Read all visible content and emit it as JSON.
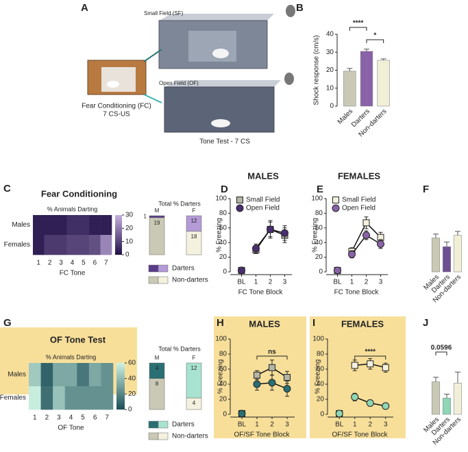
{
  "diagram": {
    "panel": "A",
    "small_field": "Small Field (SF)",
    "open_field": "Open Field (OF)",
    "fc": "Fear Conditioning (FC)",
    "fc_sub": "7 CS-US",
    "test": "Tone Test - 7 CS"
  },
  "chart_data": [
    {
      "type": "bar",
      "panel": "B",
      "ylabel": "Shock response (cm/s)",
      "categories": [
        "Males",
        "Darters",
        "Non-darters"
      ],
      "values": [
        19.5,
        30.5,
        25.5
      ],
      "errors": [
        1.5,
        1.2,
        0.8
      ],
      "colors": [
        "#c9c9b5",
        "#8a62a8",
        "#f2efd8"
      ],
      "ylim": [
        0,
        40
      ],
      "yticks": [
        0,
        10,
        20,
        30,
        40
      ],
      "annotations": [
        "****",
        "*"
      ]
    },
    {
      "type": "heatmap",
      "panel": "C",
      "title": "Fear Conditioning",
      "subtitle": "% Animals Darting",
      "rows": [
        "Males",
        "Females"
      ],
      "columns": [
        "1",
        "2",
        "3",
        "4",
        "5",
        "6",
        "7"
      ],
      "xlabel": "FC Tone",
      "values": [
        [
          3,
          3,
          3,
          6,
          6,
          3,
          3
        ],
        [
          3,
          8,
          8,
          10,
          10,
          12,
          22
        ]
      ],
      "zlim": [
        0,
        30
      ],
      "zticks": [
        0,
        10,
        20,
        30
      ],
      "cmap": [
        "#1f0f45",
        "#c6b1e0"
      ]
    },
    {
      "type": "stacked_percent",
      "title": "Total % Darters",
      "categories": [
        "M",
        "F"
      ],
      "series": [
        {
          "name": "Non-darters",
          "colors": [
            "#c9c9b5",
            "#f4f1de"
          ],
          "values": [
            19,
            18
          ]
        },
        {
          "name": "Darters",
          "colors": [
            "#5a3d8a",
            "#b49ad6"
          ],
          "values": [
            1,
            12
          ]
        }
      ]
    },
    {
      "type": "line",
      "panel": "D",
      "title": "MALES",
      "ylabel": "% Freezing",
      "xlabel": "FC Tone Block",
      "categories": [
        "BL",
        "1",
        "2",
        "3"
      ],
      "ylim": [
        0,
        100
      ],
      "yticks": [
        0,
        20,
        40,
        60,
        80,
        100
      ],
      "legend": "upper left",
      "series": [
        {
          "name": "Small Field",
          "color": "#b5b5a5",
          "marker": "square",
          "values": [
            2,
            30,
            58,
            50
          ],
          "errors": [
            1,
            5,
            12,
            10
          ]
        },
        {
          "name": "Open Field",
          "color": "#4a2e72",
          "marker": "circle",
          "values": [
            2,
            32,
            58,
            53
          ],
          "errors": [
            1,
            6,
            10,
            10
          ]
        }
      ]
    },
    {
      "type": "line",
      "panel": "E",
      "title": "FEMALES",
      "ylabel": "% Freezing",
      "xlabel": "FC Tone Block",
      "categories": [
        "BL",
        "1",
        "2",
        "3"
      ],
      "ylim": [
        0,
        100
      ],
      "yticks": [
        0,
        20,
        40,
        60,
        80,
        100
      ],
      "legend": "upper left",
      "series": [
        {
          "name": "Small Field",
          "color": "#f4f1de",
          "marker": "square",
          "values": [
            2,
            28,
            67,
            47
          ],
          "errors": [
            1,
            5,
            8,
            7
          ]
        },
        {
          "name": "Open Field",
          "color": "#8a62a8",
          "marker": "circle",
          "values": [
            2,
            24,
            50,
            38
          ],
          "errors": [
            1,
            5,
            6,
            6
          ]
        }
      ]
    },
    {
      "type": "bar",
      "panel": "F",
      "categories": [
        "Males",
        "Darters",
        "Non-darters"
      ],
      "values": [
        51,
        38,
        55
      ],
      "errors": [
        6,
        7,
        6
      ],
      "colors": [
        "#c9c9b5",
        "#6e4f93",
        "#f2efd8"
      ],
      "ylim": [
        0,
        100
      ]
    },
    {
      "type": "heatmap",
      "panel": "G",
      "title": "OF Tone Test",
      "subtitle": "% Animals Darting",
      "rows": [
        "Males",
        "Females"
      ],
      "columns": [
        "1",
        "2",
        "3",
        "4",
        "5",
        "6",
        "7"
      ],
      "xlabel": "OF Tone",
      "values": [
        [
          45,
          8,
          33,
          33,
          15,
          33,
          25
        ],
        [
          58,
          12,
          42,
          25,
          25,
          25,
          25
        ]
      ],
      "zlim": [
        0,
        60
      ],
      "zticks": [
        0,
        20,
        40,
        60
      ],
      "cmap": [
        "#1b4d57",
        "#cdf2e3"
      ]
    },
    {
      "type": "stacked_percent",
      "title": "Total % Darters",
      "categories": [
        "M",
        "F"
      ],
      "series": [
        {
          "name": "Non-darters",
          "colors": [
            "#c9c9b5",
            "#f4f1de"
          ],
          "values": [
            8,
            4
          ]
        },
        {
          "name": "Darters",
          "colors": [
            "#2a6f73",
            "#a8e2d0"
          ],
          "values": [
            4,
            12
          ]
        }
      ]
    },
    {
      "type": "line",
      "panel": "H",
      "title": "MALES",
      "ylabel": "% Freezing",
      "xlabel": "OF/SF Tone Block",
      "categories": [
        "BL",
        "1",
        "2",
        "3"
      ],
      "ylim": [
        0,
        100
      ],
      "yticks": [
        0,
        20,
        40,
        60,
        80,
        100
      ],
      "annotations": [
        "ns"
      ],
      "series": [
        {
          "name": "Small Field",
          "color": "#b5b5a5",
          "marker": "square",
          "values": [
            1,
            52,
            62,
            49
          ],
          "errors": [
            1,
            6,
            10,
            8
          ]
        },
        {
          "name": "Open Field",
          "color": "#2a6f73",
          "marker": "circle",
          "values": [
            1,
            40,
            42,
            34
          ],
          "errors": [
            1,
            8,
            10,
            10
          ]
        }
      ]
    },
    {
      "type": "line",
      "panel": "I",
      "title": "FEMALES",
      "ylabel": "% Freezing",
      "xlabel": "OF/SF Tone Block",
      "categories": [
        "BL",
        "1",
        "2",
        "3"
      ],
      "ylim": [
        0,
        100
      ],
      "yticks": [
        0,
        20,
        40,
        60,
        80,
        100
      ],
      "annotations": [
        "****"
      ],
      "series": [
        {
          "name": "Small Field",
          "color": "#f4f1de",
          "marker": "square",
          "values": [
            1,
            65,
            67,
            62
          ],
          "errors": [
            1,
            7,
            7,
            6
          ]
        },
        {
          "name": "Open Field",
          "color": "#8fd6b5",
          "marker": "circle",
          "values": [
            1,
            23,
            15,
            11
          ],
          "errors": [
            1,
            5,
            4,
            4
          ]
        }
      ]
    },
    {
      "type": "bar",
      "panel": "J",
      "categories": [
        "Males",
        "Darters",
        "Non-darters"
      ],
      "values": [
        50,
        25,
        48
      ],
      "errors": [
        7,
        6,
        17
      ],
      "colors": [
        "#c9c9b5",
        "#8fd6b5",
        "#f2efd8"
      ],
      "ylim": [
        0,
        100
      ],
      "annotations": [
        "0.0596"
      ]
    }
  ]
}
